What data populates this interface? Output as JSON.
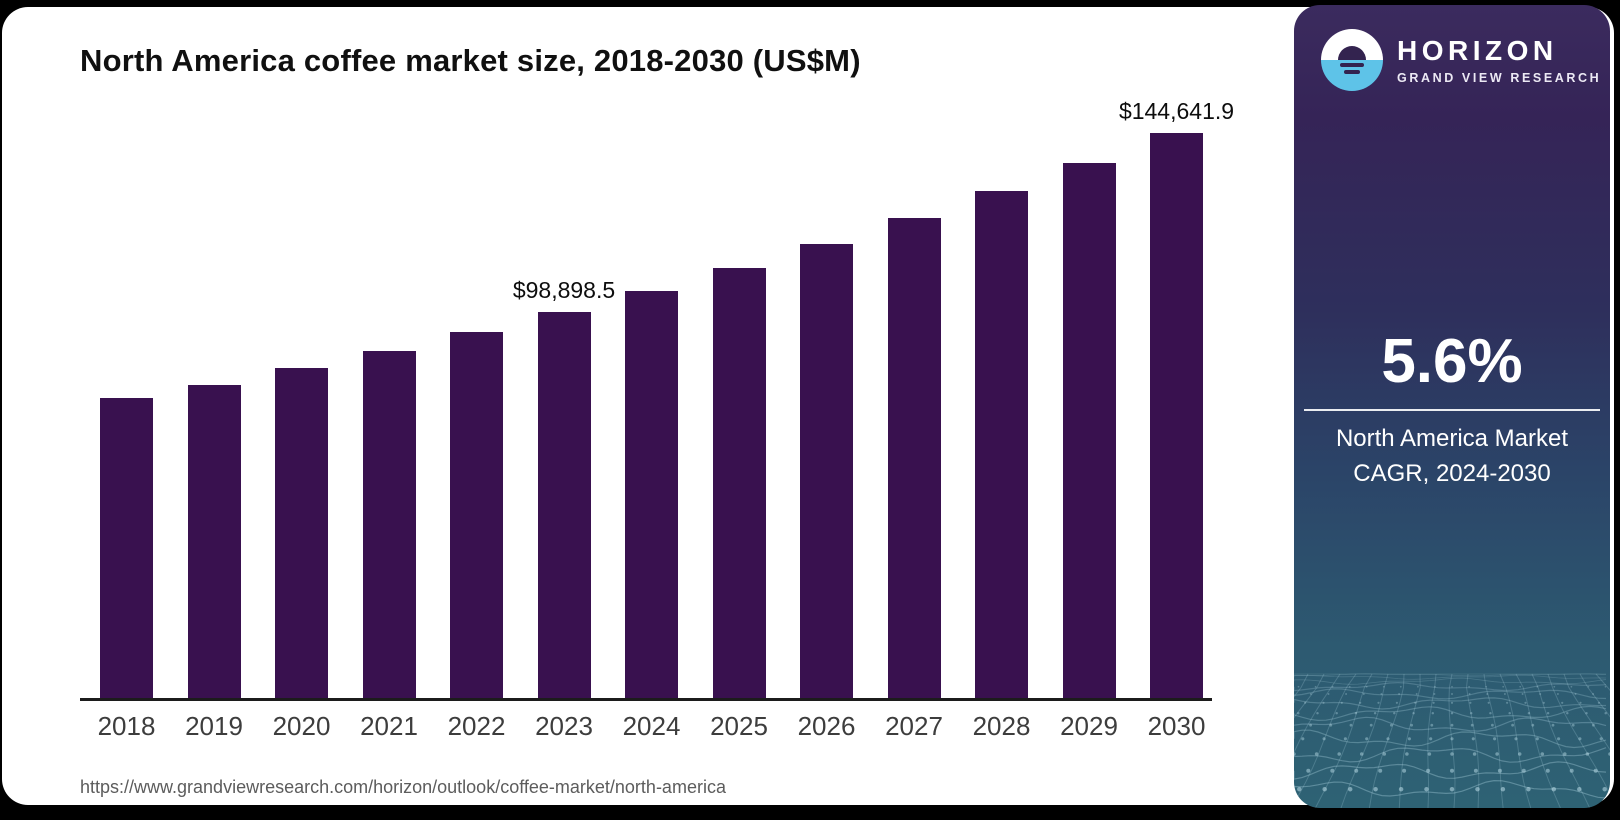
{
  "page": {
    "title": "North America coffee market size, 2018-2030 (US$M)",
    "source_url": "https://www.grandviewresearch.com/horizon/outlook/coffee-market/north-america"
  },
  "chart_data": {
    "type": "bar",
    "title": "North America coffee market size, 2018-2030 (US$M)",
    "unit": "US$M",
    "xlabel": "",
    "ylabel": "",
    "categories": [
      "2018",
      "2019",
      "2020",
      "2021",
      "2022",
      "2023",
      "2024",
      "2025",
      "2026",
      "2027",
      "2028",
      "2029",
      "2030"
    ],
    "values": [
      76800,
      80100,
      84500,
      88900,
      93700,
      98898.5,
      104300,
      110200,
      116300,
      122800,
      129700,
      137000,
      144641.9
    ],
    "value_labels": [
      {
        "category": "2023",
        "text": "$98,898.5"
      },
      {
        "category": "2030",
        "text": "$144,641.9"
      }
    ],
    "ylim": [
      0,
      150000
    ],
    "grid": false,
    "bar_color": "#39114f",
    "axis_color": "#1c1c1c"
  },
  "side_panel": {
    "brand": {
      "name": "HORIZON",
      "subtitle": "GRAND VIEW RESEARCH"
    },
    "stat": {
      "value": "5.6%",
      "caption_line1": "North America Market",
      "caption_line2": "CAGR, 2024-2030"
    },
    "colors": {
      "gradient_top": "#3b2b5e",
      "gradient_middle": "#2b4468",
      "gradient_bottom": "#2e6274",
      "logo_blue": "#5ec3e8",
      "logo_dark": "#33234f"
    }
  }
}
